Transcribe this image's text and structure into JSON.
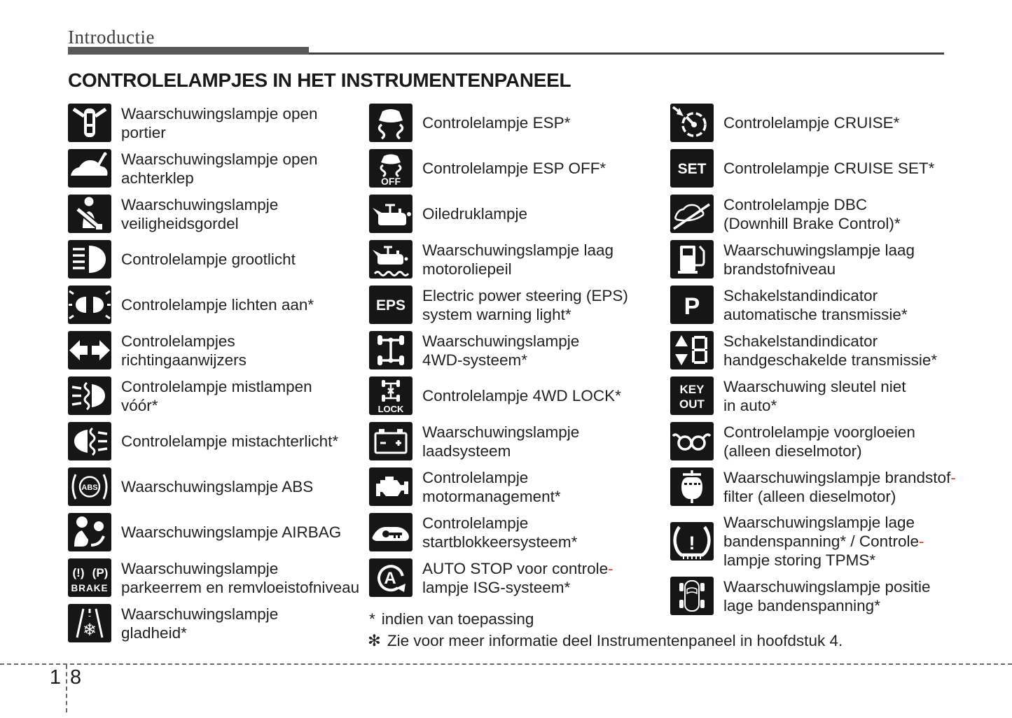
{
  "header": {
    "section_title": "Introductie"
  },
  "title": "CONTROLELAMPJES IN HET INSTRUMENTENPANEEL",
  "colors": {
    "red": "#d8342a",
    "tile_black": "#161616",
    "bar_gray": "#58595b"
  },
  "columns": [
    {
      "items": [
        {
          "icon": "door-open-icon",
          "lines": [
            [
              {
                "t": "Waarschuwingslampje open"
              }
            ],
            [
              {
                "t": "portier"
              }
            ]
          ]
        },
        {
          "icon": "tailgate-open-icon",
          "lines": [
            [
              {
                "t": "Waarschuwingslampje open"
              }
            ],
            [
              {
                "t": "achterklep"
              }
            ]
          ]
        },
        {
          "icon": "seatbelt-icon",
          "lines": [
            [
              {
                "t": "Waarschuwingslampje"
              }
            ],
            [
              {
                "t": "veiligheidsgordel"
              }
            ]
          ]
        },
        {
          "icon": "high-beam-icon",
          "lines": [
            [
              {
                "t": "Controlelampje grootlicht"
              }
            ]
          ]
        },
        {
          "icon": "lights-on-icon",
          "lines": [
            [
              {
                "t": "Controlelampje lichten aan*"
              }
            ]
          ]
        },
        {
          "icon": "turn-signals-icon",
          "lines": [
            [
              {
                "t": "Controlelampjes"
              }
            ],
            [
              {
                "t": "richtingaanwijzers"
              }
            ]
          ]
        },
        {
          "icon": "front-fog-icon",
          "lines": [
            [
              {
                "t": "Controlelampje mistlampen"
              }
            ],
            [
              {
                "t": "vóór*"
              }
            ]
          ]
        },
        {
          "icon": "rear-fog-icon",
          "lines": [
            [
              {
                "t": "Controlelampje mistachterlicht*"
              }
            ]
          ]
        },
        {
          "icon": "abs-icon",
          "lines": [
            [
              {
                "t": "Waarschuwingslampje ABS"
              }
            ]
          ]
        },
        {
          "icon": "airbag-icon",
          "lines": [
            [
              {
                "t": "Waarschuwingslampje AIRBAG"
              }
            ]
          ]
        },
        {
          "icon": "brake-warning-icon",
          "lines": [
            [
              {
                "t": "Waarschuwingslampje"
              }
            ],
            [
              {
                "t": "parkeerrem en remvloeistofniveau"
              }
            ]
          ]
        },
        {
          "icon": "slippery-road-icon",
          "lines": [
            [
              {
                "t": "Waarschuwingslampje"
              }
            ],
            [
              {
                "t": "gladheid*"
              }
            ]
          ]
        }
      ]
    },
    {
      "items": [
        {
          "icon": "esp-icon",
          "lines": [
            [
              {
                "t": "Controlelampje ESP*"
              }
            ]
          ]
        },
        {
          "icon": "esp-off-icon",
          "lines": [
            [
              {
                "t": "Controlelampje ESP OFF*"
              }
            ]
          ]
        },
        {
          "icon": "oil-pressure-icon",
          "lines": [
            [
              {
                "t": "Oiledruklampje"
              }
            ]
          ]
        },
        {
          "icon": "oil-level-icon",
          "lines": [
            [
              {
                "t": "Waarschuwingslampje laag"
              }
            ],
            [
              {
                "t": "motoroliepeil"
              }
            ]
          ]
        },
        {
          "icon": "eps-icon",
          "lines": [
            [
              {
                "t": "Electric power steering (EPS)"
              }
            ],
            [
              {
                "t": "system warning light*"
              }
            ]
          ]
        },
        {
          "icon": "fourwd-icon",
          "lines": [
            [
              {
                "t": "Waarschuwingslampje"
              }
            ],
            [
              {
                "t": "4WD-systeem*"
              }
            ]
          ]
        },
        {
          "icon": "fourwd-lock-icon",
          "lines": [
            [
              {
                "t": "Controlelampje 4WD LOCK*"
              }
            ]
          ]
        },
        {
          "icon": "battery-icon",
          "lines": [
            [
              {
                "t": "Waarschuwingslampje"
              }
            ],
            [
              {
                "t": "laadsysteem"
              }
            ]
          ]
        },
        {
          "icon": "engine-icon",
          "lines": [
            [
              {
                "t": "Controlelampje"
              }
            ],
            [
              {
                "t": "motormanagement*"
              }
            ]
          ]
        },
        {
          "icon": "immobilizer-icon",
          "lines": [
            [
              {
                "t": "Controlelampje"
              }
            ],
            [
              {
                "t": "startblokkeersysteem*"
              }
            ]
          ]
        },
        {
          "icon": "auto-stop-icon",
          "lines": [
            [
              {
                "t": "AUTO STOP voor controle"
              },
              {
                "t": "-",
                "red": true
              }
            ],
            [
              {
                "t": "lampje ISG-systeem*"
              }
            ]
          ]
        }
      ]
    },
    {
      "items": [
        {
          "icon": "cruise-icon",
          "lines": [
            [
              {
                "t": "Controlelampje CRUISE*"
              }
            ]
          ]
        },
        {
          "icon": "cruise-set-icon",
          "lines": [
            [
              {
                "t": "Controlelampje CRUISE SET*"
              }
            ]
          ]
        },
        {
          "icon": "dbc-icon",
          "lines": [
            [
              {
                "t": "Controlelampje DBC"
              }
            ],
            [
              {
                "t": "(Downhill Brake Control)*"
              }
            ]
          ]
        },
        {
          "icon": "fuel-icon",
          "lines": [
            [
              {
                "t": "Waarschuwingslampje laag"
              }
            ],
            [
              {
                "t": "brandstofniveau"
              }
            ]
          ]
        },
        {
          "icon": "park-indicator-icon",
          "lines": [
            [
              {
                "t": "Schakelstandindicator"
              }
            ],
            [
              {
                "t": "automatische transmissie*"
              }
            ]
          ]
        },
        {
          "icon": "shift-indicator-icon",
          "lines": [
            [
              {
                "t": "Schakelstandindicator"
              }
            ],
            [
              {
                "t": "handgeschakelde transmissie*"
              }
            ]
          ]
        },
        {
          "icon": "key-out-icon",
          "lines": [
            [
              {
                "t": "Waarschuwing sleutel niet"
              }
            ],
            [
              {
                "t": "in auto*"
              }
            ]
          ]
        },
        {
          "icon": "glow-plug-icon",
          "lines": [
            [
              {
                "t": "Controlelampje voorgloeien"
              }
            ],
            [
              {
                "t": "(alleen dieselmotor)"
              }
            ]
          ]
        },
        {
          "icon": "fuel-filter-icon",
          "lines": [
            [
              {
                "t": "Waarschuwingslampje brandstof"
              },
              {
                "t": "-",
                "red": true
              }
            ],
            [
              {
                "t": "filter (alleen dieselmotor)"
              }
            ]
          ]
        },
        {
          "icon": "tpms-icon",
          "lines": [
            [
              {
                "t": "Waarschuwingslampje lage"
              }
            ],
            [
              {
                "t": "bandenspanning* / Controle"
              },
              {
                "t": "-",
                "red": true
              }
            ],
            [
              {
                "t": "lampje storing TPMS*"
              }
            ]
          ]
        },
        {
          "icon": "tire-position-icon",
          "lines": [
            [
              {
                "t": "Waarschuwingslampje positie"
              }
            ],
            [
              {
                "t": "lage bandenspanning*"
              }
            ]
          ]
        }
      ]
    }
  ],
  "footnotes": [
    {
      "symbol": "*",
      "text": "indien van toepassing"
    },
    {
      "symbol": "✻",
      "text": "Zie voor meer informatie deel Instrumentenpaneel in hoofdstuk 4."
    }
  ],
  "footer": {
    "chapter_number": "1",
    "page_number": "8"
  }
}
